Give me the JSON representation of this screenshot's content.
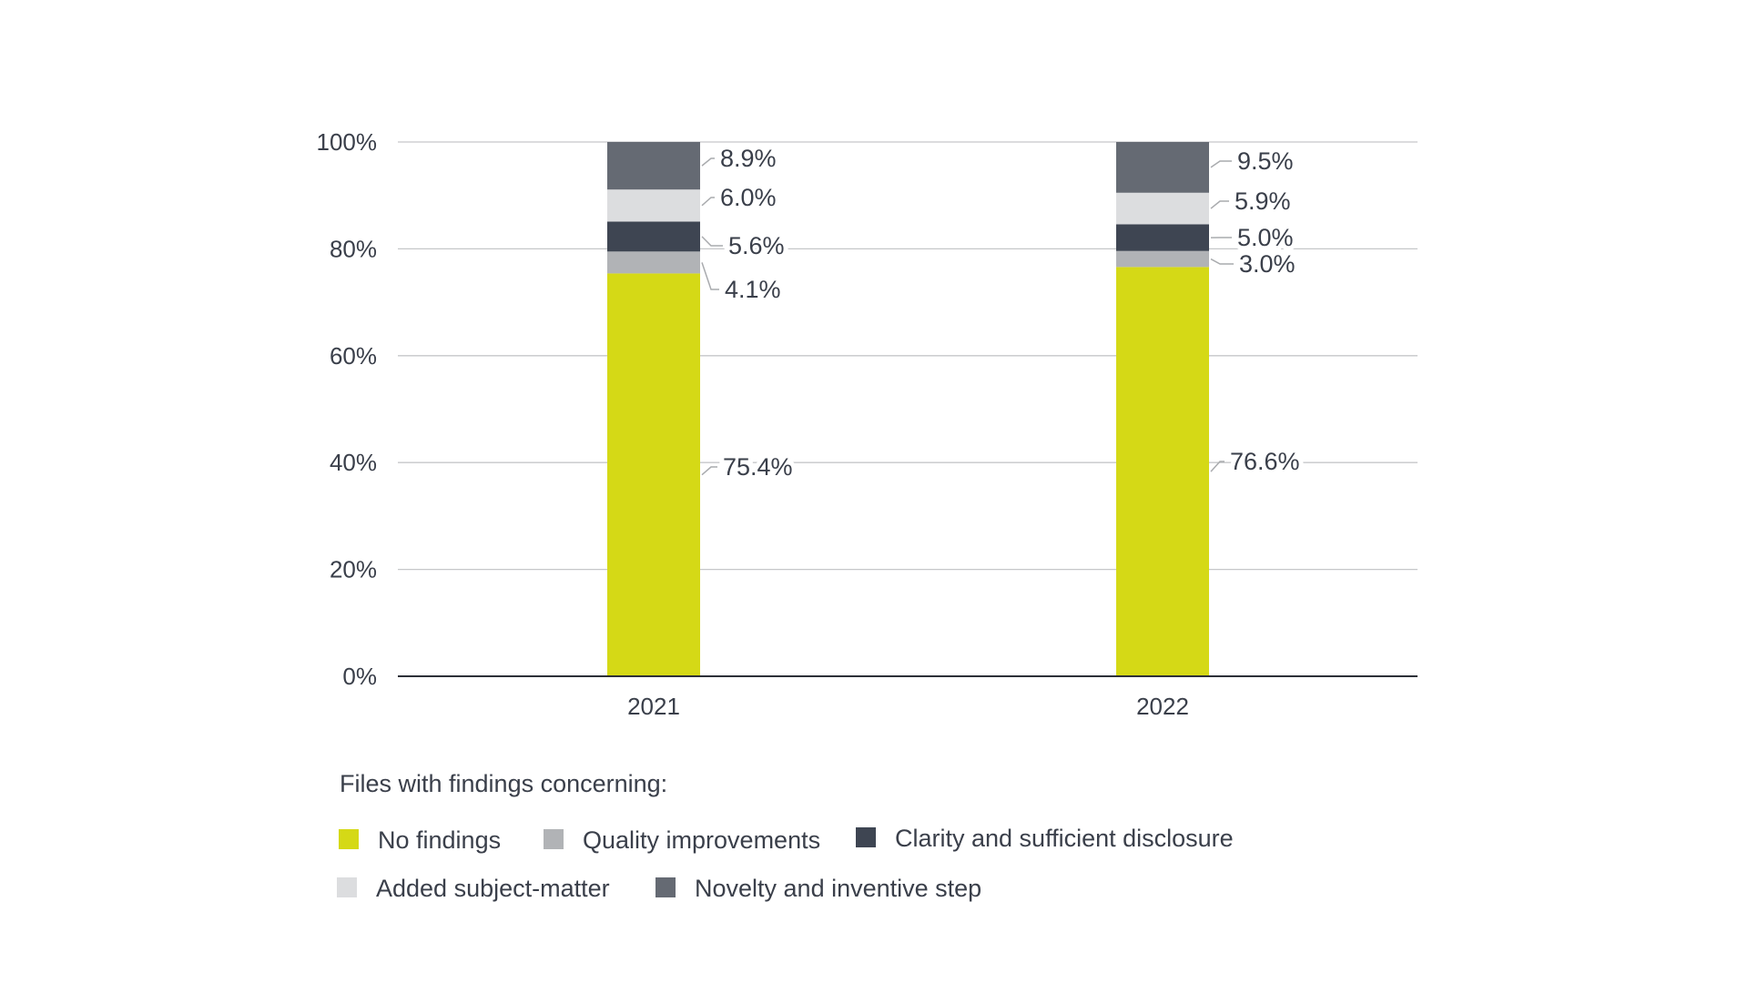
{
  "chart_data": {
    "type": "bar",
    "stacked": true,
    "categories": [
      "2021",
      "2022"
    ],
    "series": [
      {
        "name": "No findings",
        "color": "#d5d916",
        "values": [
          75.4,
          76.6
        ]
      },
      {
        "name": "Quality improvements",
        "color": "#b1b3b6",
        "values": [
          4.1,
          3.0
        ]
      },
      {
        "name": "Clarity and sufficient disclosure",
        "color": "#3e4552",
        "values": [
          5.6,
          5.0
        ]
      },
      {
        "name": "Added subject-matter",
        "color": "#dcdddf",
        "values": [
          6.0,
          5.9
        ]
      },
      {
        "name": "Novelty and inventive step",
        "color": "#656a73",
        "values": [
          8.9,
          9.5
        ]
      }
    ],
    "data_labels": [
      [
        "75.4%",
        "4.1%",
        "5.6%",
        "6.0%",
        "8.9%"
      ],
      [
        "76.6%",
        "3.0%",
        "5.0%",
        "5.9%",
        "9.5%"
      ]
    ],
    "yticks": [
      "0%",
      "20%",
      "40%",
      "60%",
      "80%",
      "100%"
    ],
    "ylim": [
      0,
      100
    ],
    "grid": true,
    "legend_title": "Files with findings concerning:",
    "legend_placement": "bottom-left",
    "title": "",
    "xlabel": "",
    "ylabel": ""
  }
}
